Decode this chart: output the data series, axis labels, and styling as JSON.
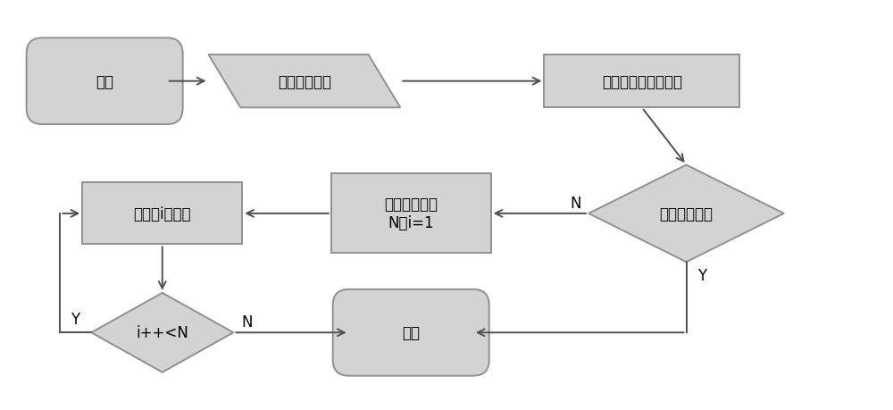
{
  "bg_color": "#ffffff",
  "shape_fill": "#d3d3d3",
  "shape_edge": "#909090",
  "arrow_color": "#505050",
  "text_color": "#000000",
  "fontsize": 12,
  "start_label": "开始",
  "input_label": "输入二值图像",
  "detect_label": "检测图像中的外轮廓",
  "empty_label": "轮廓图像为空",
  "setn_label": "轮廓的个数为\nN，i=1",
  "fill_label": "填充第i个轮廓",
  "chki_label": "i++<N",
  "end_label": "结束",
  "label_N": "N",
  "label_Y": "Y"
}
